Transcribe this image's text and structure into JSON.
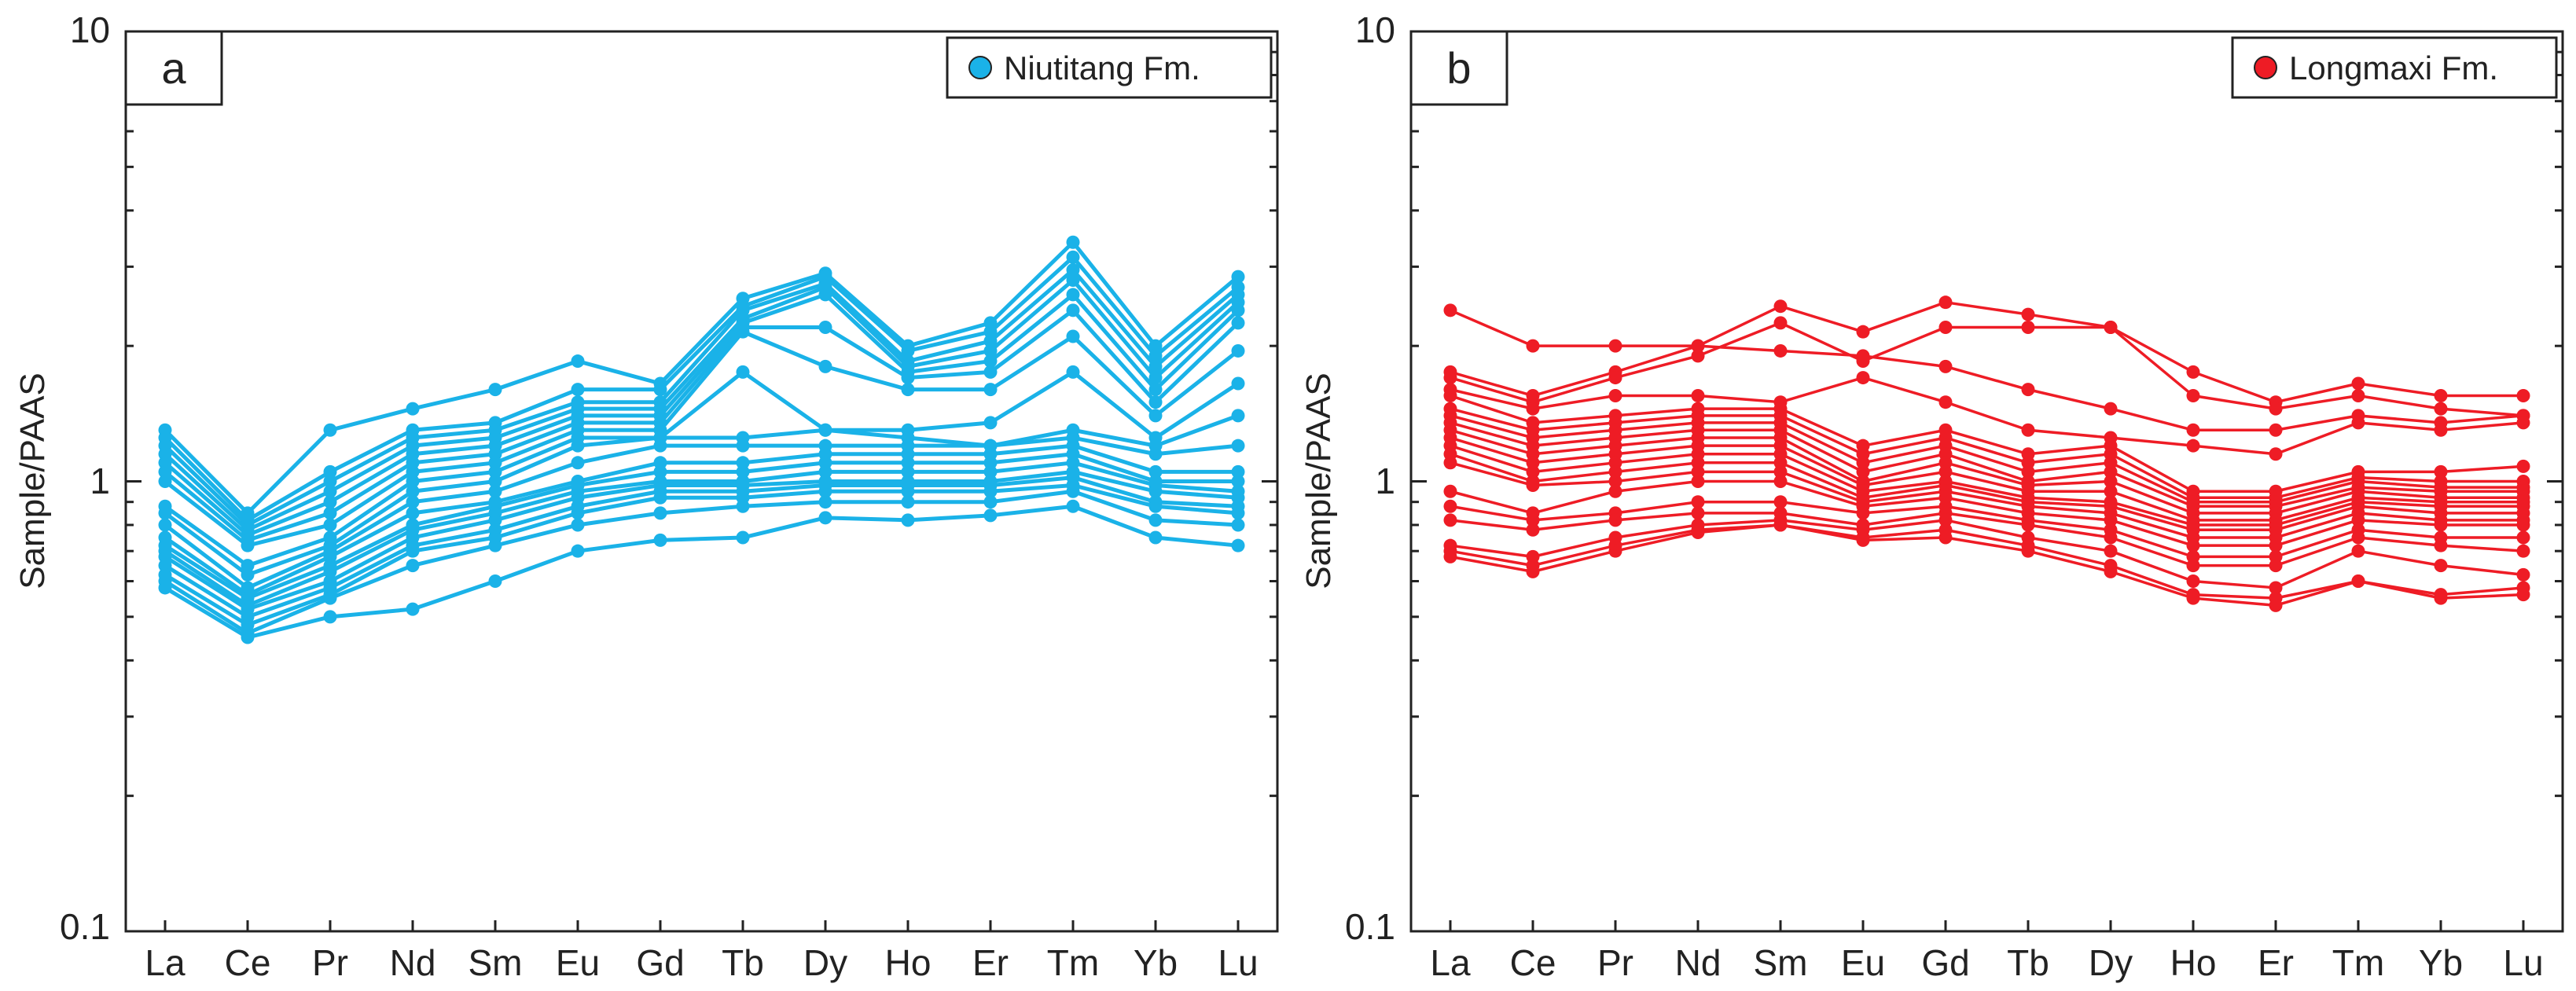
{
  "chart_data": [
    {
      "type": "line",
      "panel_label": "a",
      "legend": "Niutitang Fm.",
      "color": "#1ab2e8",
      "ylabel": "Sample/PAAS",
      "yscale": "log",
      "ylim": [
        0.1,
        10
      ],
      "yticks": [
        "10",
        "1",
        "0.1"
      ],
      "categories": [
        "La",
        "Ce",
        "Pr",
        "Nd",
        "Sm",
        "Eu",
        "Gd",
        "Tb",
        "Dy",
        "Ho",
        "Er",
        "Tm",
        "Yb",
        "Lu"
      ],
      "series": [
        {
          "values": [
            1.3,
            0.85,
            1.3,
            1.45,
            1.6,
            1.85,
            1.65,
            2.55,
            2.9,
            2.0,
            2.25,
            3.4,
            2.0,
            2.85
          ]
        },
        {
          "values": [
            1.25,
            0.82,
            1.05,
            1.3,
            1.35,
            1.6,
            1.6,
            2.45,
            2.85,
            1.95,
            2.15,
            3.15,
            1.9,
            2.7
          ]
        },
        {
          "values": [
            1.2,
            0.8,
            1.0,
            1.25,
            1.3,
            1.5,
            1.5,
            2.4,
            2.75,
            1.85,
            2.05,
            2.95,
            1.8,
            2.6
          ]
        },
        {
          "values": [
            1.15,
            0.78,
            0.95,
            1.2,
            1.25,
            1.45,
            1.45,
            2.3,
            2.7,
            1.8,
            1.95,
            2.8,
            1.7,
            2.5
          ]
        },
        {
          "values": [
            1.1,
            0.76,
            0.9,
            1.15,
            1.2,
            1.4,
            1.4,
            2.25,
            2.6,
            1.75,
            1.85,
            2.6,
            1.6,
            2.4
          ]
        },
        {
          "values": [
            1.05,
            0.74,
            0.85,
            1.1,
            1.15,
            1.35,
            1.35,
            2.2,
            2.2,
            1.7,
            1.75,
            2.4,
            1.5,
            2.25
          ]
        },
        {
          "values": [
            1.0,
            0.72,
            0.8,
            1.05,
            1.1,
            1.3,
            1.3,
            2.15,
            1.8,
            1.6,
            1.6,
            2.1,
            1.4,
            1.95
          ]
        },
        {
          "values": [
            0.88,
            0.65,
            0.75,
            1.0,
            1.05,
            1.25,
            1.25,
            1.75,
            1.3,
            1.3,
            1.35,
            1.75,
            1.25,
            1.65
          ]
        },
        {
          "values": [
            0.85,
            0.62,
            0.72,
            0.95,
            1.0,
            1.2,
            1.25,
            1.25,
            1.3,
            1.25,
            1.2,
            1.3,
            1.2,
            1.4
          ]
        },
        {
          "values": [
            0.8,
            0.58,
            0.7,
            0.9,
            0.95,
            1.1,
            1.2,
            1.2,
            1.2,
            1.2,
            1.2,
            1.25,
            1.15,
            1.2
          ]
        },
        {
          "values": [
            0.75,
            0.56,
            0.68,
            0.85,
            0.9,
            1.0,
            1.1,
            1.1,
            1.15,
            1.15,
            1.15,
            1.2,
            1.05,
            1.05
          ]
        },
        {
          "values": [
            0.72,
            0.55,
            0.65,
            0.8,
            0.88,
            0.98,
            1.05,
            1.05,
            1.1,
            1.1,
            1.1,
            1.15,
            1.0,
            1.0
          ]
        },
        {
          "values": [
            0.7,
            0.53,
            0.63,
            0.78,
            0.85,
            0.95,
            1.0,
            1.0,
            1.05,
            1.05,
            1.05,
            1.1,
            0.98,
            0.95
          ]
        },
        {
          "values": [
            0.68,
            0.52,
            0.6,
            0.75,
            0.82,
            0.92,
            0.98,
            0.98,
            1.0,
            1.0,
            1.0,
            1.05,
            0.95,
            0.92
          ]
        },
        {
          "values": [
            0.65,
            0.5,
            0.58,
            0.72,
            0.78,
            0.88,
            0.95,
            0.95,
            0.98,
            0.98,
            0.98,
            1.02,
            0.9,
            0.88
          ]
        },
        {
          "values": [
            0.62,
            0.48,
            0.56,
            0.7,
            0.75,
            0.85,
            0.92,
            0.92,
            0.95,
            0.95,
            0.95,
            0.98,
            0.88,
            0.85
          ]
        },
        {
          "values": [
            0.6,
            0.46,
            0.55,
            0.65,
            0.72,
            0.8,
            0.85,
            0.88,
            0.9,
            0.9,
            0.9,
            0.95,
            0.82,
            0.8
          ]
        },
        {
          "values": [
            0.58,
            0.45,
            0.5,
            0.52,
            0.6,
            0.7,
            0.74,
            0.75,
            0.83,
            0.82,
            0.84,
            0.88,
            0.75,
            0.72
          ]
        }
      ]
    },
    {
      "type": "line",
      "panel_label": "b",
      "legend": "Longmaxi Fm.",
      "color": "#ee1c25",
      "ylabel": "Sample/PAAS",
      "yscale": "log",
      "ylim": [
        0.1,
        10
      ],
      "yticks": [
        "10",
        "1",
        "0.1"
      ],
      "categories": [
        "La",
        "Ce",
        "Pr",
        "Nd",
        "Sm",
        "Eu",
        "Gd",
        "Tb",
        "Dy",
        "Ho",
        "Er",
        "Tm",
        "Yb",
        "Lu"
      ],
      "series": [
        {
          "values": [
            2.4,
            2.0,
            2.0,
            2.0,
            1.95,
            1.9,
            1.8,
            1.6,
            1.45,
            1.3,
            1.3,
            1.4,
            1.35,
            1.4
          ]
        },
        {
          "values": [
            1.75,
            1.55,
            1.75,
            2.0,
            2.45,
            2.15,
            2.5,
            2.35,
            2.2,
            1.75,
            1.5,
            1.65,
            1.55,
            1.55
          ]
        },
        {
          "values": [
            1.7,
            1.5,
            1.7,
            1.9,
            2.25,
            1.85,
            2.2,
            2.2,
            2.2,
            1.55,
            1.45,
            1.55,
            1.45,
            1.4
          ]
        },
        {
          "values": [
            1.6,
            1.45,
            1.55,
            1.55,
            1.5,
            1.7,
            1.5,
            1.3,
            1.25,
            1.2,
            1.15,
            1.35,
            1.3,
            1.35
          ]
        },
        {
          "values": [
            1.55,
            1.35,
            1.4,
            1.45,
            1.45,
            1.2,
            1.3,
            1.15,
            1.2,
            0.95,
            0.95,
            1.05,
            1.05,
            1.08
          ]
        },
        {
          "values": [
            1.45,
            1.3,
            1.35,
            1.4,
            1.4,
            1.15,
            1.25,
            1.1,
            1.15,
            0.92,
            0.92,
            1.02,
            1.0,
            1.0
          ]
        },
        {
          "values": [
            1.4,
            1.25,
            1.3,
            1.35,
            1.35,
            1.1,
            1.2,
            1.05,
            1.1,
            0.9,
            0.9,
            1.0,
            0.97,
            0.97
          ]
        },
        {
          "values": [
            1.35,
            1.2,
            1.25,
            1.3,
            1.3,
            1.05,
            1.15,
            1.0,
            1.05,
            0.88,
            0.88,
            0.97,
            0.95,
            0.95
          ]
        },
        {
          "values": [
            1.3,
            1.15,
            1.2,
            1.25,
            1.25,
            1.0,
            1.1,
            0.98,
            1.0,
            0.85,
            0.85,
            0.95,
            0.92,
            0.92
          ]
        },
        {
          "values": [
            1.25,
            1.1,
            1.15,
            1.2,
            1.2,
            0.98,
            1.05,
            0.95,
            0.95,
            0.82,
            0.82,
            0.92,
            0.9,
            0.9
          ]
        },
        {
          "values": [
            1.2,
            1.05,
            1.1,
            1.15,
            1.15,
            0.95,
            1.0,
            0.92,
            0.9,
            0.8,
            0.8,
            0.9,
            0.88,
            0.88
          ]
        },
        {
          "values": [
            1.15,
            1.0,
            1.05,
            1.1,
            1.1,
            0.92,
            0.98,
            0.9,
            0.88,
            0.78,
            0.78,
            0.88,
            0.85,
            0.85
          ]
        },
        {
          "values": [
            1.1,
            0.98,
            1.0,
            1.05,
            1.05,
            0.9,
            0.95,
            0.88,
            0.85,
            0.75,
            0.75,
            0.85,
            0.82,
            0.82
          ]
        },
        {
          "values": [
            0.95,
            0.85,
            0.95,
            1.0,
            1.0,
            0.88,
            0.92,
            0.85,
            0.82,
            0.72,
            0.72,
            0.82,
            0.8,
            0.8
          ]
        },
        {
          "values": [
            0.88,
            0.82,
            0.85,
            0.9,
            0.9,
            0.85,
            0.88,
            0.82,
            0.78,
            0.68,
            0.68,
            0.78,
            0.75,
            0.75
          ]
        },
        {
          "values": [
            0.82,
            0.78,
            0.82,
            0.85,
            0.85,
            0.8,
            0.85,
            0.8,
            0.75,
            0.65,
            0.65,
            0.75,
            0.72,
            0.7
          ]
        },
        {
          "values": [
            0.72,
            0.68,
            0.75,
            0.8,
            0.82,
            0.78,
            0.82,
            0.75,
            0.7,
            0.6,
            0.58,
            0.7,
            0.65,
            0.62
          ]
        },
        {
          "values": [
            0.7,
            0.65,
            0.72,
            0.78,
            0.8,
            0.75,
            0.78,
            0.72,
            0.65,
            0.56,
            0.55,
            0.6,
            0.56,
            0.58
          ]
        },
        {
          "values": [
            0.68,
            0.63,
            0.7,
            0.77,
            0.8,
            0.74,
            0.75,
            0.7,
            0.63,
            0.55,
            0.53,
            0.6,
            0.55,
            0.56
          ]
        }
      ]
    }
  ]
}
